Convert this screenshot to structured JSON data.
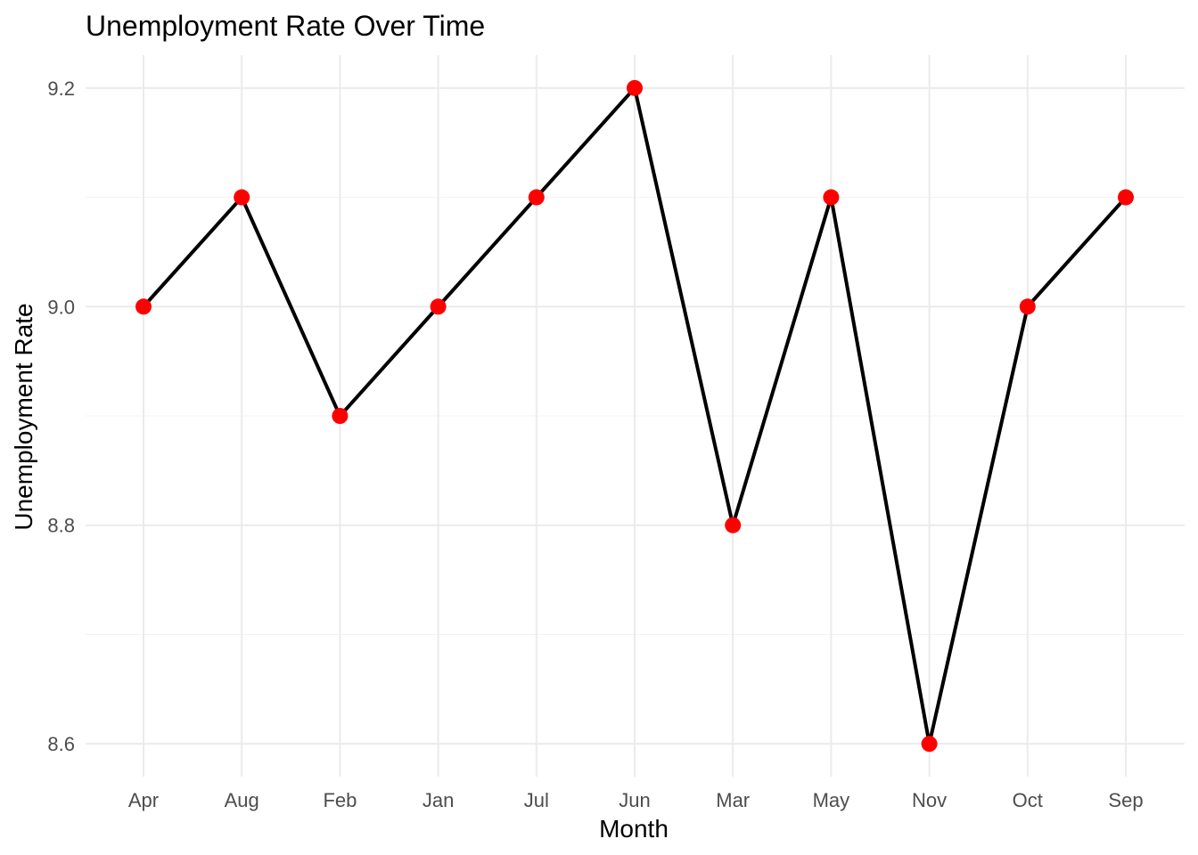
{
  "chart_data": {
    "type": "line",
    "title": "Unemployment Rate Over Time",
    "xlabel": "Month",
    "ylabel": "Unemployment Rate",
    "categories": [
      "Apr",
      "Aug",
      "Feb",
      "Jan",
      "Jul",
      "Jun",
      "Mar",
      "May",
      "Nov",
      "Oct",
      "Sep"
    ],
    "series": [
      {
        "values": [
          9.0,
          9.1,
          8.9,
          9.0,
          9.1,
          9.2,
          8.8,
          9.1,
          8.6,
          9.0,
          9.1
        ],
        "line_color": "#000000",
        "point_color": "#ff0000"
      }
    ],
    "ylim": [
      8.57,
      9.23
    ],
    "yticks": [
      8.6,
      8.8,
      9.0,
      9.2
    ],
    "ytick_labels": [
      "8.6",
      "8.8",
      "9.0",
      "9.2"
    ],
    "grid": true,
    "legend": "none"
  }
}
